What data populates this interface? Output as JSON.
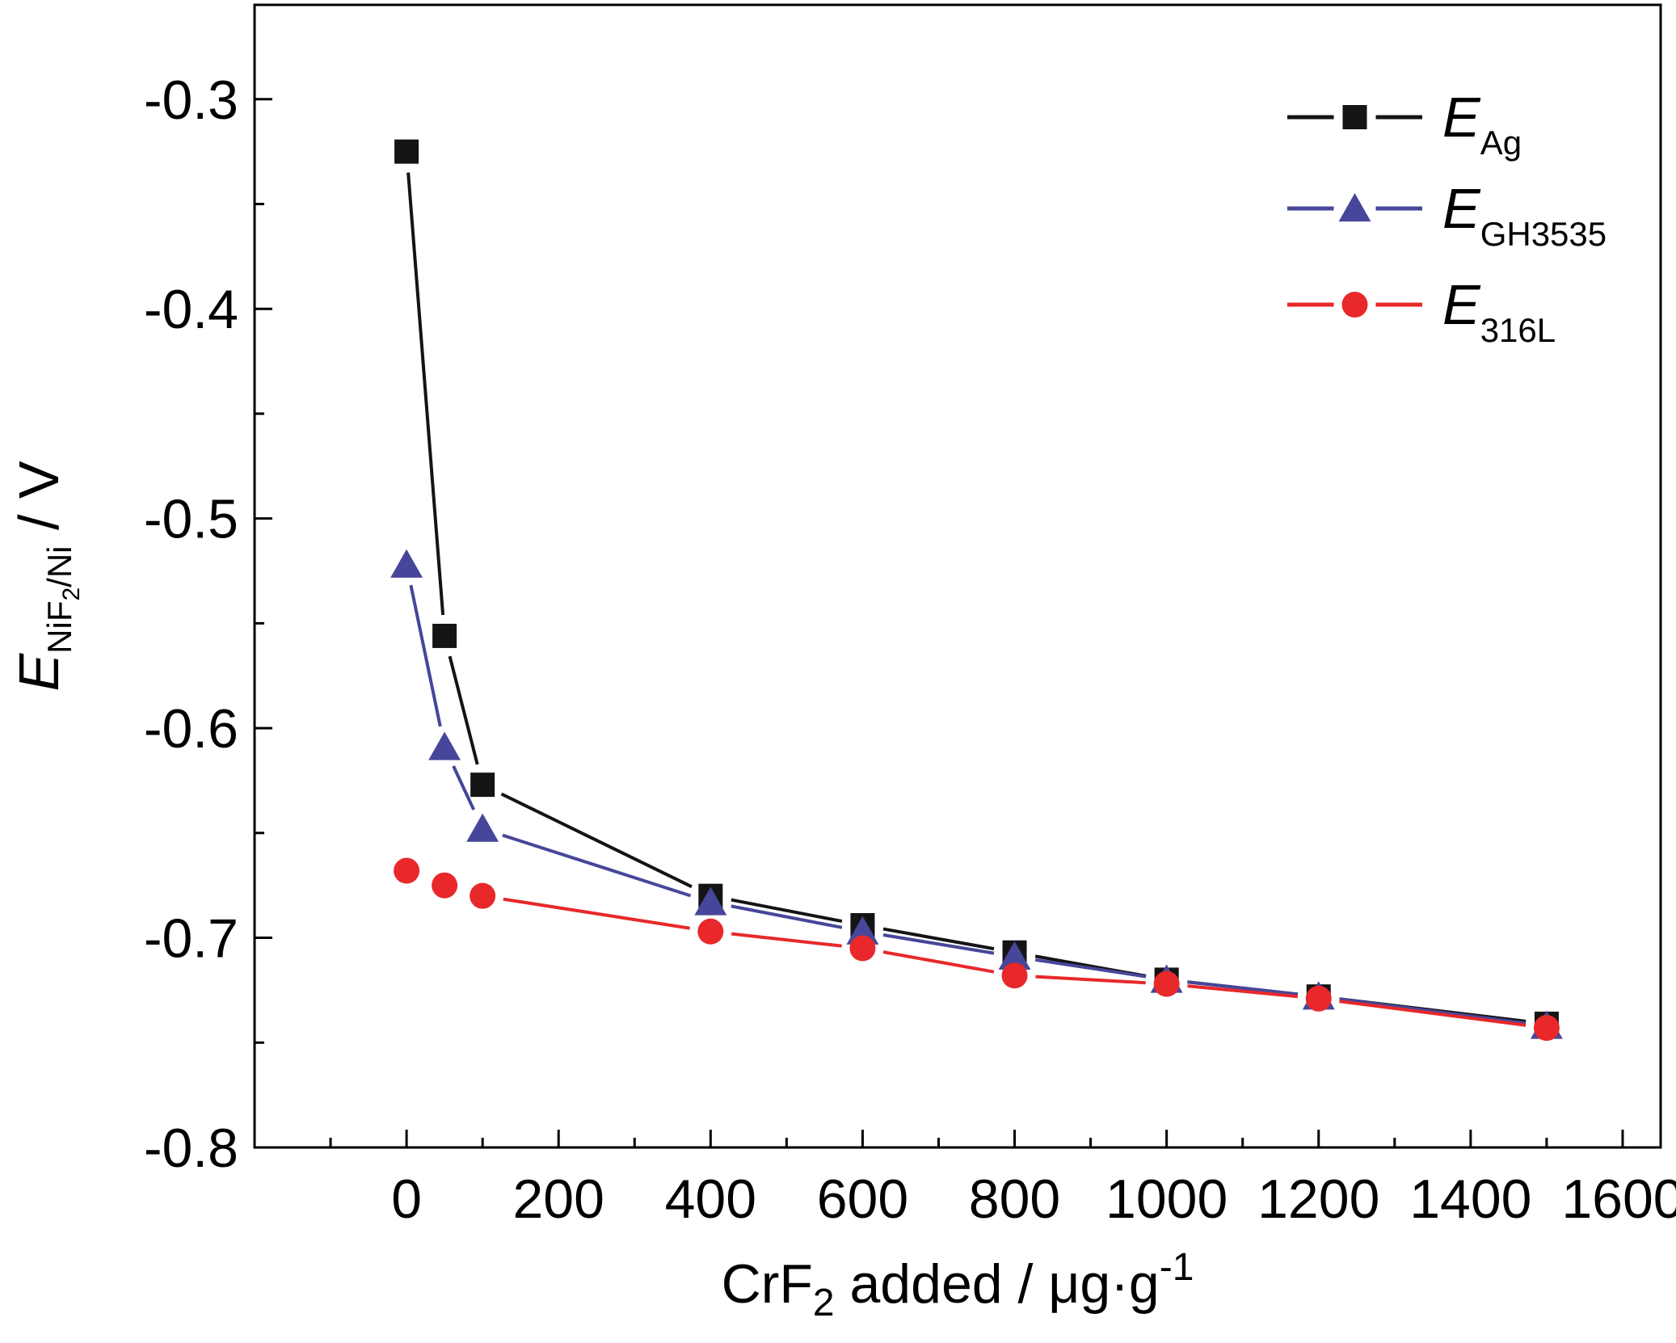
{
  "chart_data": {
    "type": "line",
    "xlabel": {
      "main": "CrF",
      "sub": "2",
      "rest": " added / μg·g",
      "sup": "-1"
    },
    "ylabel": {
      "main": "E",
      "sub": "NiF",
      "subsub": "2",
      "sub2": "/Ni",
      "rest": " / V"
    },
    "xlim": [
      -200,
      1650
    ],
    "ylim": [
      -0.8,
      -0.255
    ],
    "xticks": [
      0,
      200,
      400,
      600,
      800,
      1000,
      1200,
      1400,
      1600
    ],
    "xticklabels": [
      "0",
      "200",
      "400",
      "600",
      "800",
      "1000",
      "1200",
      "1400",
      "1600"
    ],
    "yticks": [
      -0.3,
      -0.4,
      -0.5,
      -0.6,
      -0.7,
      -0.8
    ],
    "yticklabels": [
      "-0.3",
      "-0.4",
      "-0.5",
      "-0.6",
      "-0.7",
      "-0.8"
    ],
    "grid": false,
    "legend_position": "top-right",
    "x": [
      0,
      50,
      100,
      400,
      600,
      800,
      1000,
      1200,
      1500
    ],
    "series": [
      {
        "name": "E",
        "name_sub": "Ag",
        "color": "#141414",
        "marker": "square",
        "values": [
          -0.325,
          -0.556,
          -0.627,
          -0.68,
          -0.694,
          -0.707,
          -0.72,
          -0.728,
          -0.741
        ]
      },
      {
        "name": "E",
        "name_sub": "GH3535",
        "color": "#46469a",
        "marker": "triangle",
        "values": [
          -0.522,
          -0.609,
          -0.648,
          -0.683,
          -0.697,
          -0.709,
          -0.72,
          -0.728,
          -0.742
        ]
      },
      {
        "name": "E",
        "name_sub": "316L",
        "color": "#e8282a",
        "marker": "circle",
        "values": [
          -0.668,
          -0.675,
          -0.68,
          -0.697,
          -0.705,
          -0.718,
          -0.722,
          -0.729,
          -0.743
        ],
        "connect_from_index": 2
      }
    ]
  }
}
